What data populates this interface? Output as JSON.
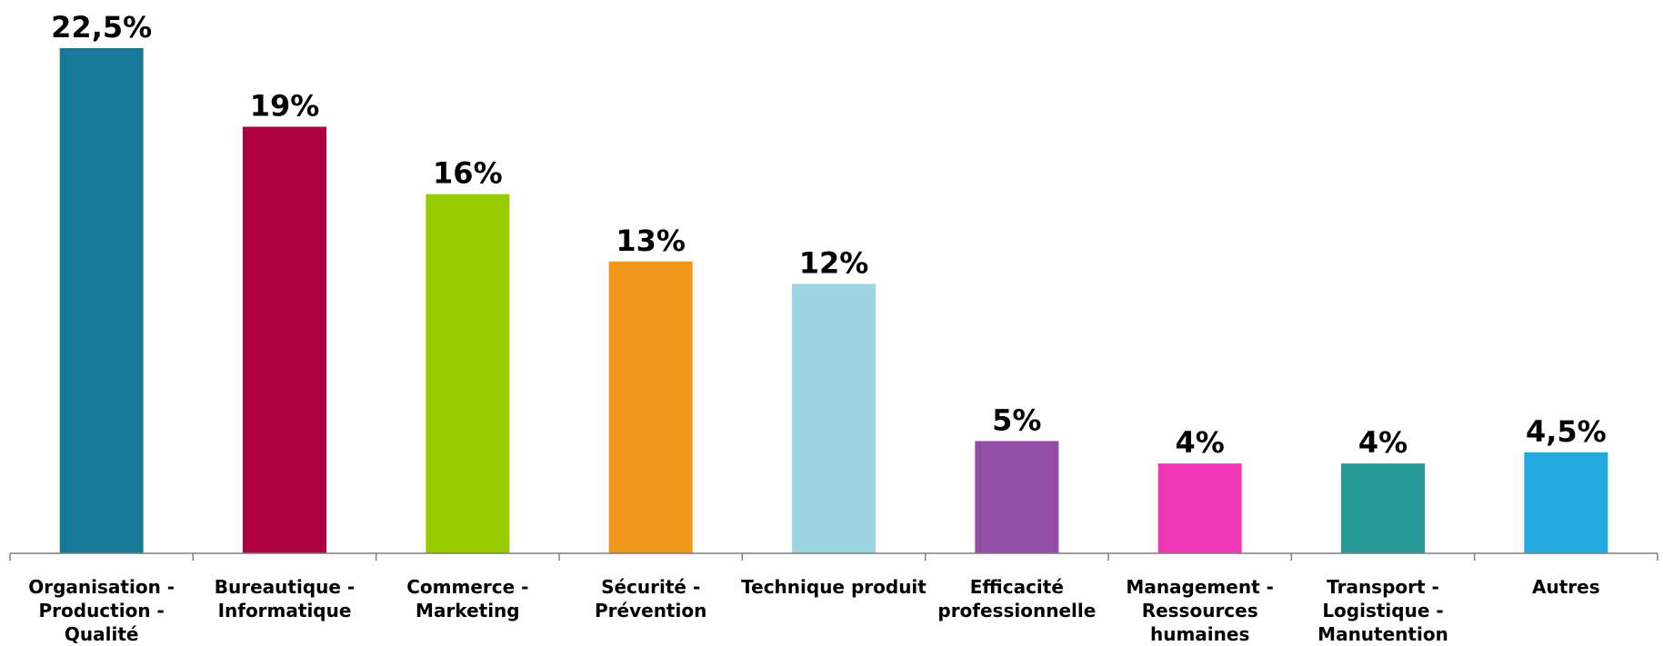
{
  "chart_data": {
    "type": "bar",
    "title": "",
    "xlabel": "",
    "ylabel": "",
    "ylim": [
      0,
      22.5
    ],
    "grid": false,
    "legend": "none",
    "categories": [
      [
        "Organisation -",
        "Production -",
        "Qualité"
      ],
      [
        "Bureautique -",
        "Informatique"
      ],
      [
        "Commerce -",
        "Marketing"
      ],
      [
        "Sécurité -",
        "Prévention"
      ],
      [
        "Technique produit"
      ],
      [
        "Efficacité",
        "professionnelle"
      ],
      [
        "Management -",
        "Ressources",
        "humaines"
      ],
      [
        "Transport -",
        "Logistique -",
        "Manutention"
      ],
      [
        "Autres"
      ]
    ],
    "values": [
      22.5,
      19,
      16,
      13,
      12,
      5,
      4,
      4,
      4.5
    ],
    "data_labels": [
      "22,5%",
      "19%",
      "16%",
      "13%",
      "12%",
      "5%",
      "4%",
      "4%",
      "4,5%"
    ],
    "colors": [
      "#167a97",
      "#af003f",
      "#99cc00",
      "#f0961a",
      "#9bd5e2",
      "#924ea2",
      "#f036b4",
      "#259a97",
      "#22a9de"
    ]
  }
}
